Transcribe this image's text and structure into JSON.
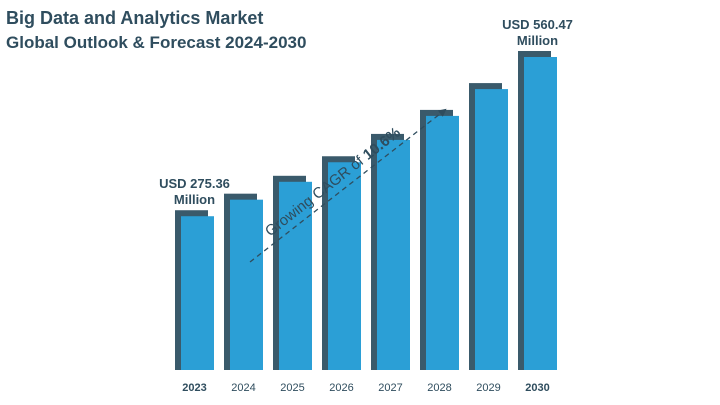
{
  "title": "Big Data and Analytics Market",
  "subtitle": "Global Outlook & Forecast 2024-2030",
  "cagr_text": "Growing CAGR of ",
  "cagr_value": "10.6%",
  "colors": {
    "bar": "#2b9fd6",
    "bar_shadow": "#3a5a6b",
    "text": "#2f4d5e"
  },
  "chart_data": {
    "type": "bar",
    "categories": [
      "2023",
      "2024",
      "2025",
      "2026",
      "2027",
      "2028",
      "2029",
      "2030"
    ],
    "values": [
      275.36,
      305,
      337,
      372,
      412,
      455,
      503,
      560.47
    ],
    "bold_categories": [
      "2023",
      "2030"
    ],
    "value_labels": [
      {
        "index": 0,
        "line1": "USD 275.36",
        "line2": "Million"
      },
      {
        "index": 7,
        "line1": "USD 560.47",
        "line2": "Million"
      }
    ],
    "ylim": [
      0,
      600
    ]
  }
}
